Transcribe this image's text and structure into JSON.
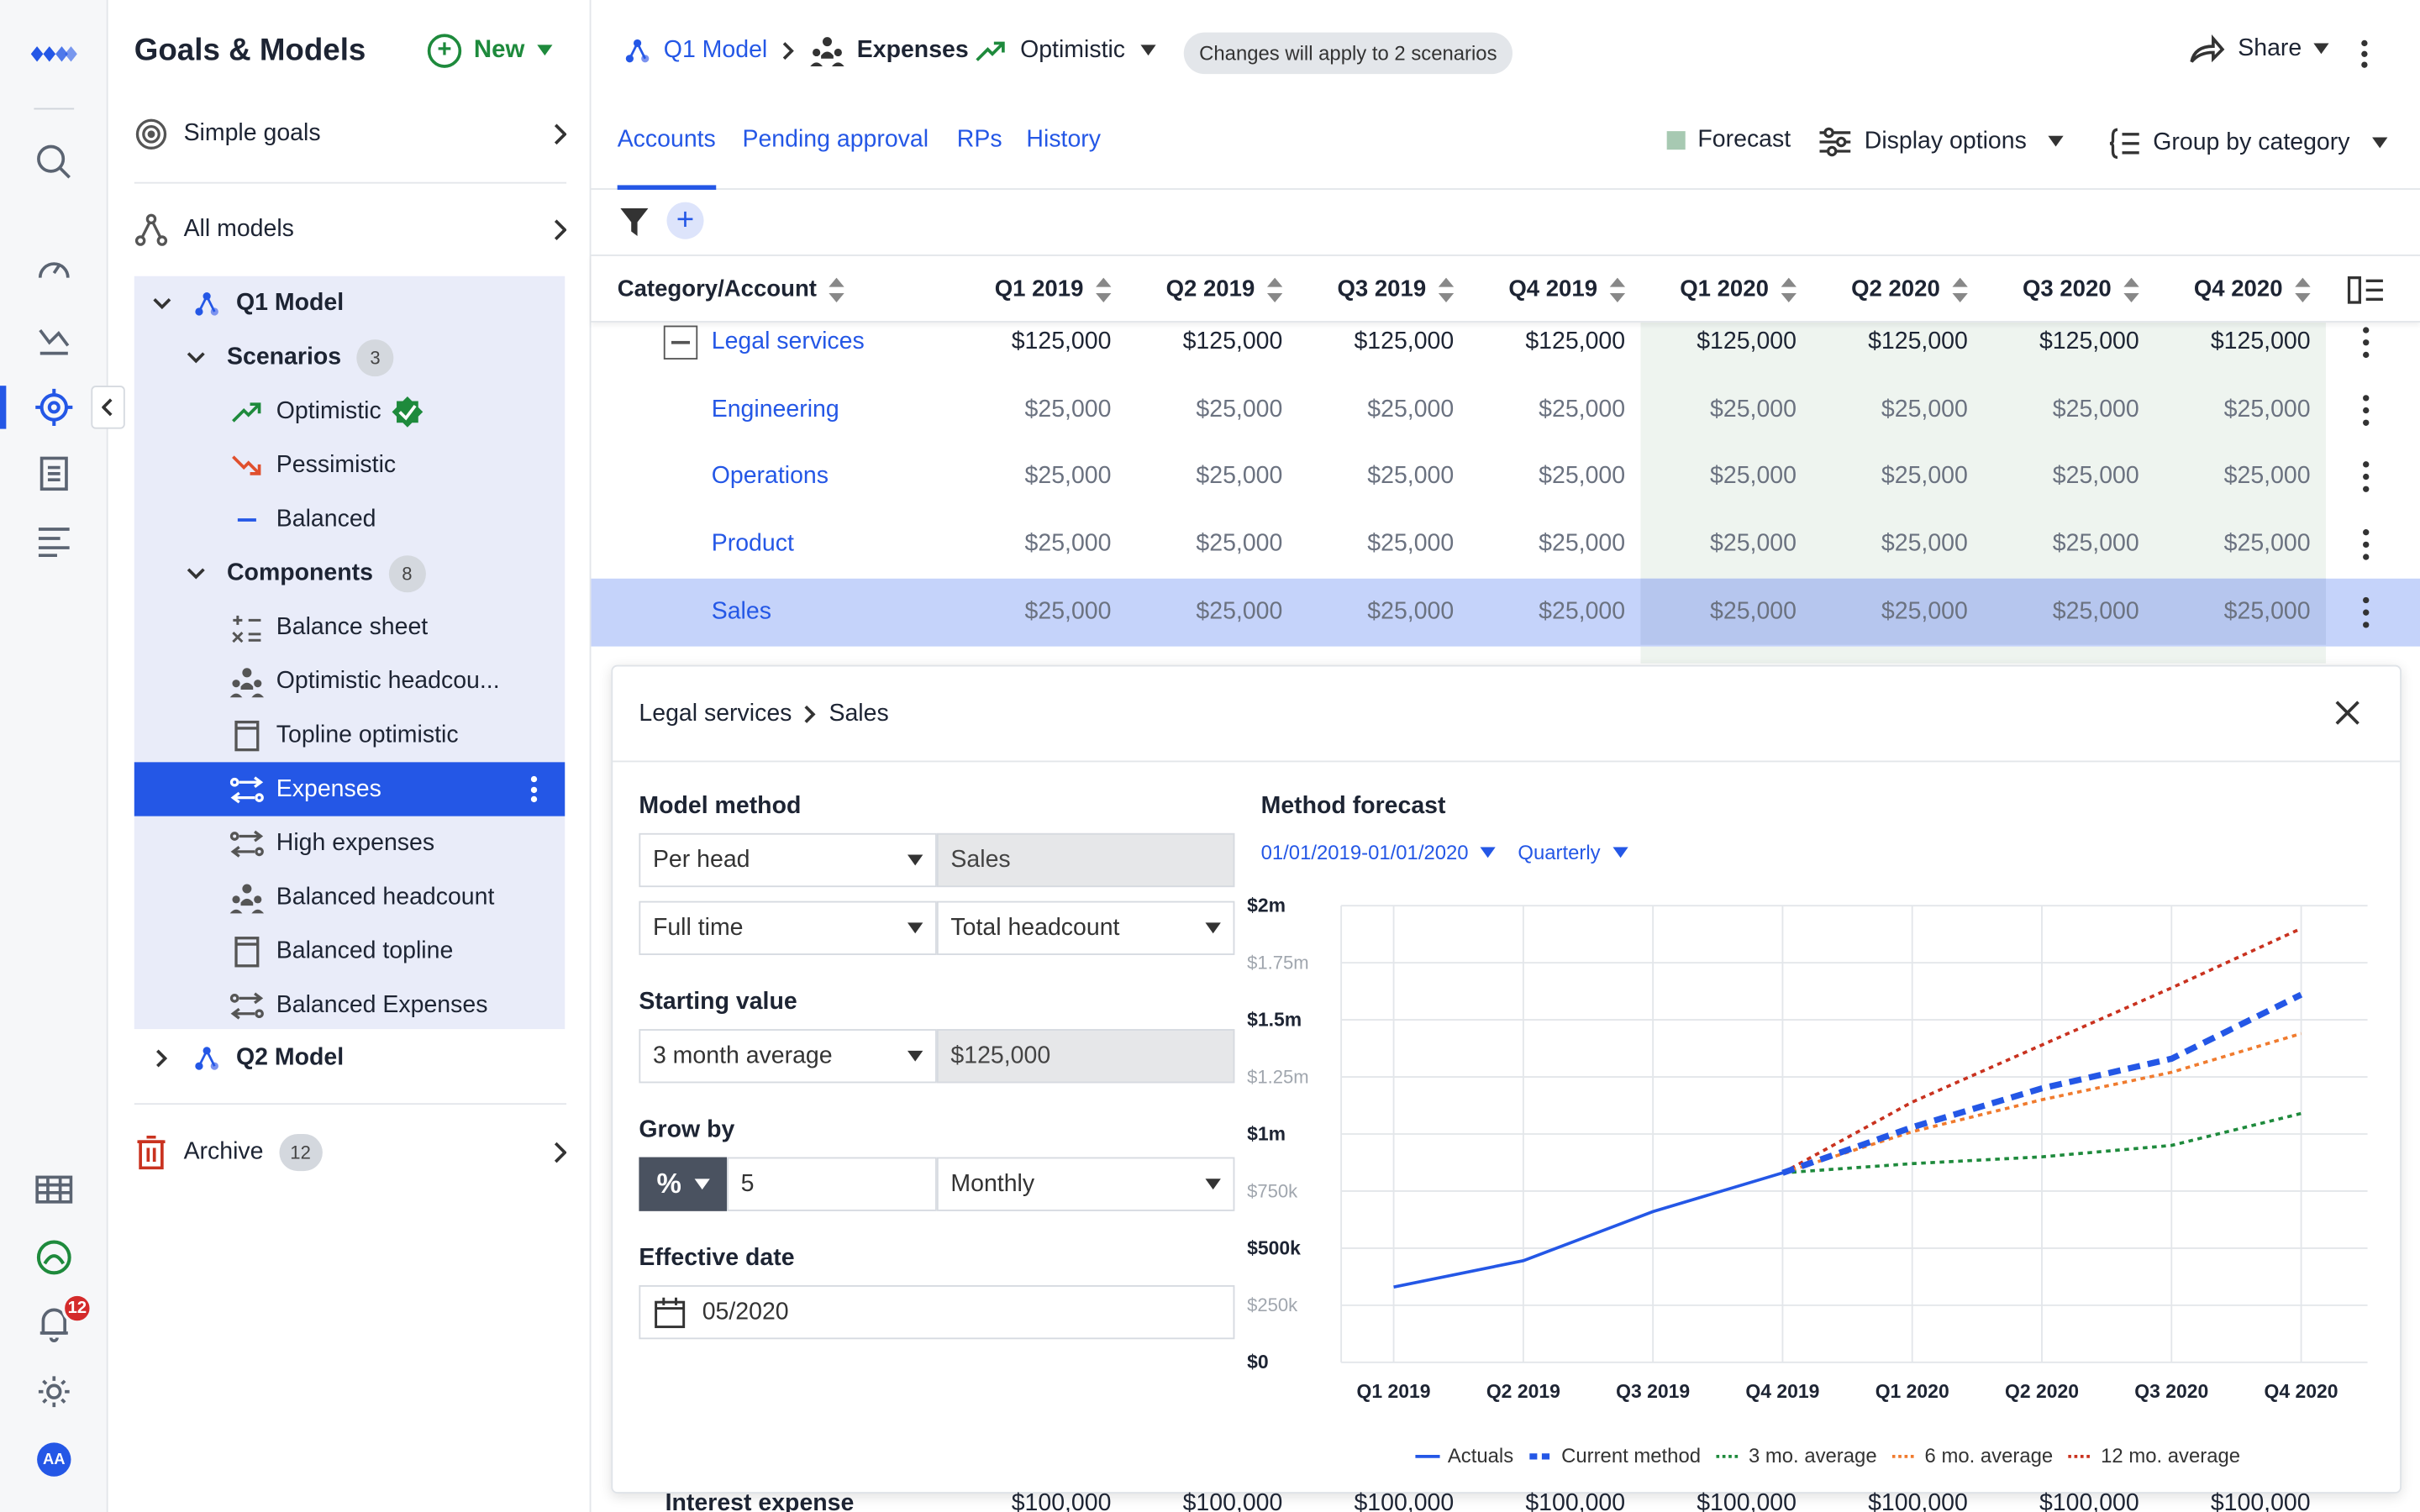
{
  "rail": {
    "notifications_count": "12",
    "avatar_initials": "AA"
  },
  "panel": {
    "title": "Goals & Models",
    "new_label": "New",
    "simple_goals": "Simple goals",
    "all_models": "All models",
    "q1_model": "Q1 Model",
    "scenarios_label": "Scenarios",
    "scenarios_count": "3",
    "scenarios": [
      "Optimistic",
      "Pessimistic",
      "Balanced"
    ],
    "components_label": "Components",
    "components_count": "8",
    "components": [
      "Balance sheet",
      "Optimistic headcou...",
      "Topline optimistic",
      "Expenses",
      "High expenses",
      "Balanced headcount",
      "Balanced topline",
      "Balanced Expenses"
    ],
    "q2_model": "Q2 Model",
    "archive_label": "Archive",
    "archive_count": "12"
  },
  "topbar": {
    "crumb_model": "Q1 Model",
    "crumb_component": "Expenses",
    "scenario": "Optimistic",
    "pill": "Changes will apply to 2 scenarios",
    "share": "Share"
  },
  "tabs": [
    "Accounts",
    "Pending approval",
    "RPs",
    "History"
  ],
  "toolbar": {
    "forecast": "Forecast",
    "display_options": "Display options",
    "group_by": "Group by category"
  },
  "table": {
    "header_account": "Category/Account",
    "columns": [
      "Q1 2019",
      "Q2 2019",
      "Q3 2019",
      "Q4 2019",
      "Q1 2020",
      "Q2 2020",
      "Q3 2020",
      "Q4 2020"
    ],
    "rows": [
      {
        "name": "Legal services",
        "values": [
          "$125,000",
          "$125,000",
          "$125,000",
          "$125,000",
          "$125,000",
          "$125,000",
          "$125,000",
          "$125,000"
        ]
      },
      {
        "name": "Engineering",
        "values": [
          "$25,000",
          "$25,000",
          "$25,000",
          "$25,000",
          "$25,000",
          "$25,000",
          "$25,000",
          "$25,000"
        ]
      },
      {
        "name": "Operations",
        "values": [
          "$25,000",
          "$25,000",
          "$25,000",
          "$25,000",
          "$25,000",
          "$25,000",
          "$25,000",
          "$25,000"
        ]
      },
      {
        "name": "Product",
        "values": [
          "$25,000",
          "$25,000",
          "$25,000",
          "$25,000",
          "$25,000",
          "$25,000",
          "$25,000",
          "$25,000"
        ]
      },
      {
        "name": "Sales",
        "values": [
          "$25,000",
          "$25,000",
          "$25,000",
          "$25,000",
          "$25,000",
          "$25,000",
          "$25,000",
          "$25,000"
        ]
      }
    ],
    "bottom_row": {
      "name": "Interest expense",
      "values": [
        "$100,000",
        "$100,000",
        "$100,000",
        "$100,000",
        "$100,000",
        "$100,000",
        "$100,000",
        "$100,000"
      ]
    }
  },
  "detail": {
    "crumb_parent": "Legal services",
    "crumb_child": "Sales",
    "model_method_label": "Model method",
    "method_select": "Per head",
    "method_target": "Sales",
    "employment_select": "Full time",
    "headcount_select": "Total headcount",
    "starting_value_label": "Starting value",
    "starting_select": "3 month average",
    "starting_value": "$125,000",
    "grow_by_label": "Grow by",
    "grow_value": "5",
    "grow_period": "Monthly",
    "effective_date_label": "Effective date",
    "effective_date": "05/2020",
    "forecast_label": "Method forecast",
    "date_range": "01/01/2019-01/01/2020",
    "granularity": "Quarterly"
  },
  "chart_data": {
    "type": "line",
    "x": [
      "Q1 2019",
      "Q2 2019",
      "Q3 2019",
      "Q4 2019",
      "Q1 2020",
      "Q2 2020",
      "Q3 2020",
      "Q4 2020"
    ],
    "ylim": [
      0,
      2000000
    ],
    "yticks": [
      "$0",
      "$250k",
      "$500k",
      "$750k",
      "$1m",
      "$1.25m",
      "$1.5m",
      "$1.75m",
      "$2m"
    ],
    "yticks_minor_style": [
      "$250k",
      "$750k",
      "$1.25m",
      "$1.75m"
    ],
    "grid": true,
    "legend_placement": "bottom",
    "series": [
      {
        "name": "Actuals",
        "color": "#2457e6",
        "style": "solid",
        "values": [
          330000,
          445000,
          660000,
          830000,
          null,
          null,
          null,
          null
        ]
      },
      {
        "name": "Current method",
        "color": "#2457e6",
        "style": "dashed-bold",
        "values": [
          null,
          null,
          null,
          830000,
          1030000,
          1200000,
          1330000,
          1610000
        ]
      },
      {
        "name": "3 mo. average",
        "color": "#1e8a3c",
        "style": "dotted",
        "values": [
          null,
          null,
          null,
          830000,
          870000,
          900000,
          950000,
          1090000
        ]
      },
      {
        "name": "6 mo. average",
        "color": "#f07b2e",
        "style": "dotted",
        "values": [
          null,
          null,
          null,
          830000,
          1010000,
          1150000,
          1270000,
          1440000
        ]
      },
      {
        "name": "12 mo. average",
        "color": "#c9321f",
        "style": "dotted",
        "values": [
          null,
          null,
          null,
          830000,
          1140000,
          1390000,
          1640000,
          1900000
        ]
      }
    ]
  }
}
